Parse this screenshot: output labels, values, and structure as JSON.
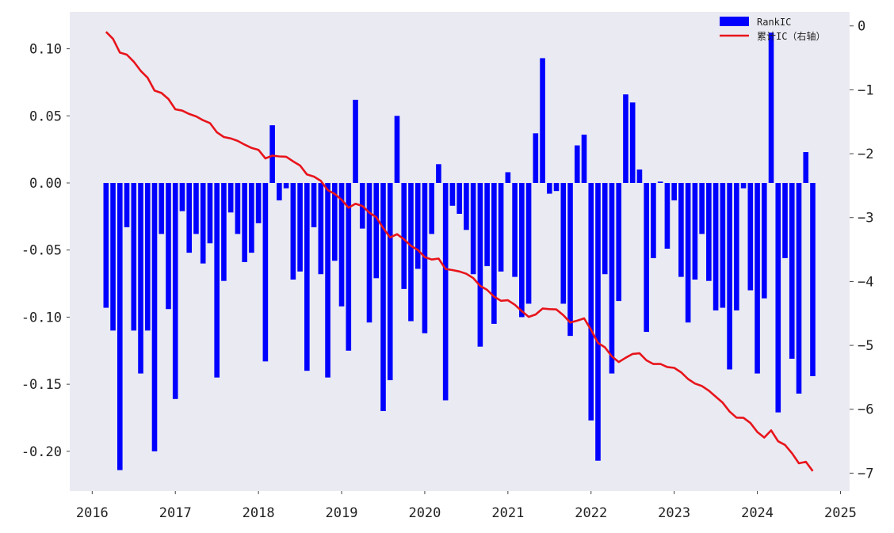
{
  "chart_data": {
    "type": "bar+line",
    "title": "",
    "xlabel": "",
    "ylabel": "",
    "ylabel_right": "",
    "x_ticks": [
      "2016",
      "2017",
      "2018",
      "2019",
      "2020",
      "2021",
      "2022",
      "2023",
      "2024",
      "2025"
    ],
    "y_ticks_left": [
      "0.10",
      "0.05",
      "0.00",
      "-0.05",
      "-0.10",
      "-0.15",
      "-0.20"
    ],
    "y_tick_values_left": [
      0.1,
      0.05,
      0.0,
      -0.05,
      -0.1,
      -0.15,
      -0.2
    ],
    "y_ticks_right": [
      "0",
      "-1",
      "-2",
      "-3",
      "-4",
      "-5",
      "-6",
      "-7"
    ],
    "y_tick_values_right": [
      0,
      -1,
      -2,
      -3,
      -4,
      -5,
      -6,
      -7
    ],
    "xlim": [
      2015.73,
      2025.11
    ],
    "ylim_left": [
      -0.2296,
      0.1275
    ],
    "ylim_right": [
      -7.28,
      0.22
    ],
    "grid": false,
    "legend_placement": "top-right",
    "background_color": "#eaeaf2",
    "series": [
      {
        "name": "RankIC",
        "kind": "bar",
        "axis": "left",
        "color": "#0000ff",
        "values": [
          -0.093,
          -0.11,
          -0.214,
          -0.033,
          -0.11,
          -0.142,
          -0.11,
          -0.2,
          -0.038,
          -0.094,
          -0.161,
          -0.021,
          -0.052,
          -0.038,
          -0.06,
          -0.045,
          -0.145,
          -0.073,
          -0.022,
          -0.038,
          -0.059,
          -0.052,
          -0.03,
          -0.133,
          0.043,
          -0.013,
          -0.004,
          -0.072,
          -0.066,
          -0.14,
          -0.033,
          -0.068,
          -0.145,
          -0.058,
          -0.092,
          -0.125,
          0.062,
          -0.034,
          -0.104,
          -0.071,
          -0.17,
          -0.147,
          0.05,
          -0.079,
          -0.103,
          -0.064,
          -0.112,
          -0.038,
          0.014,
          -0.162,
          -0.017,
          -0.023,
          -0.035,
          -0.068,
          -0.122,
          -0.062,
          -0.105,
          -0.066,
          0.008,
          -0.07,
          -0.1,
          -0.09,
          0.037,
          0.093,
          -0.008,
          -0.006,
          -0.09,
          -0.114,
          0.028,
          0.036,
          -0.177,
          -0.207,
          -0.068,
          -0.142,
          -0.088,
          0.066,
          0.06,
          0.01,
          -0.111,
          -0.056,
          0.001,
          -0.049,
          -0.013,
          -0.07,
          -0.104,
          -0.072,
          -0.038,
          -0.073,
          -0.095,
          -0.093,
          -0.139,
          -0.095,
          -0.004,
          -0.08,
          -0.142,
          -0.086,
          0.112,
          -0.171,
          -0.056,
          -0.131,
          -0.157,
          0.023,
          -0.144
        ]
      },
      {
        "name": "累计IC（右轴）",
        "kind": "line",
        "axis": "right",
        "color": "#e8141b",
        "derived_from": "cumulative sum of RankIC"
      }
    ],
    "x": [
      "2016-02",
      "2016-03",
      "2016-04",
      "2016-05",
      "2016-06",
      "2016-07",
      "2016-08",
      "2016-09",
      "2016-10",
      "2016-11",
      "2016-12",
      "2017-01",
      "2017-02",
      "2017-03",
      "2017-04",
      "2017-05",
      "2017-06",
      "2017-07",
      "2017-08",
      "2017-09",
      "2017-10",
      "2017-11",
      "2017-12",
      "2018-01",
      "2018-02",
      "2018-03",
      "2018-04",
      "2018-05",
      "2018-06",
      "2018-07",
      "2018-08",
      "2018-09",
      "2018-10",
      "2018-11",
      "2018-12",
      "2019-01",
      "2019-02",
      "2019-03",
      "2019-04",
      "2019-05",
      "2019-06",
      "2019-07",
      "2019-08",
      "2019-09",
      "2019-10",
      "2019-11",
      "2019-12",
      "2020-01",
      "2020-02",
      "2020-03",
      "2020-04",
      "2020-05",
      "2020-06",
      "2020-07",
      "2020-08",
      "2020-09",
      "2020-10",
      "2020-11",
      "2020-12",
      "2021-01",
      "2021-02",
      "2021-03",
      "2021-04",
      "2021-05",
      "2021-06",
      "2021-07",
      "2021-08",
      "2021-09",
      "2021-10",
      "2021-11",
      "2021-12",
      "2022-01",
      "2022-02",
      "2022-03",
      "2022-04",
      "2022-05",
      "2022-06",
      "2022-07",
      "2022-08",
      "2022-09",
      "2022-10",
      "2022-11",
      "2022-12",
      "2023-01",
      "2023-02",
      "2023-03",
      "2023-04",
      "2023-05",
      "2023-06",
      "2023-07",
      "2023-08",
      "2023-09",
      "2023-10",
      "2023-11",
      "2023-12",
      "2024-01",
      "2024-02",
      "2024-03",
      "2024-04",
      "2024-05",
      "2024-06",
      "2024-07",
      "2024-08"
    ]
  }
}
